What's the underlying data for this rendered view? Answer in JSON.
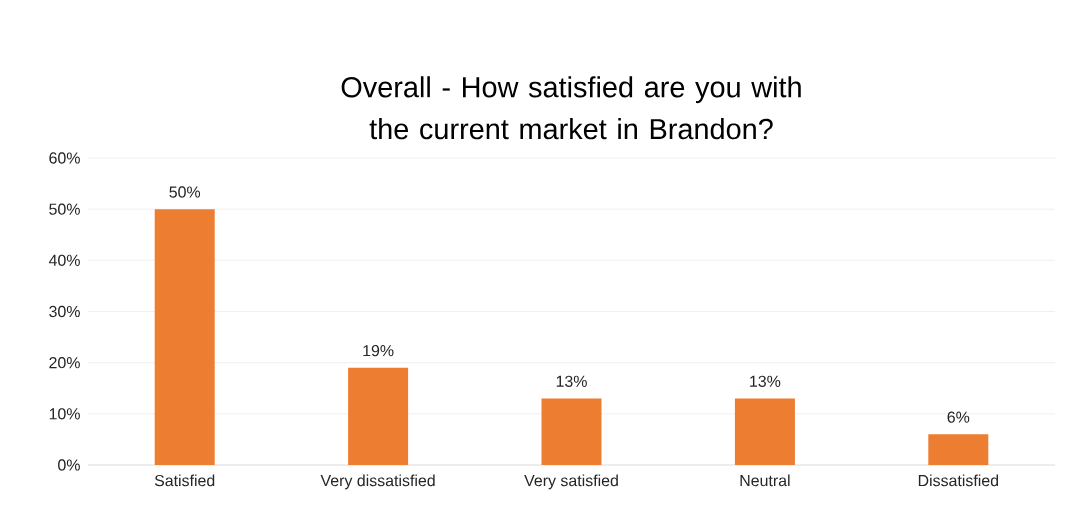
{
  "chart_data": {
    "type": "bar",
    "title": "Overall - How satisfied are you with the current market in Brandon?",
    "categories": [
      "Satisfied",
      "Very dissatisfied",
      "Very satisfied",
      "Neutral",
      "Dissatisfied"
    ],
    "values": [
      50,
      19,
      13,
      13,
      6
    ],
    "value_labels": [
      "50%",
      "19%",
      "13%",
      "13%",
      "6%"
    ],
    "color": "#ed7d31",
    "ylim": [
      0,
      60
    ],
    "yticks": [
      {
        "value": 0,
        "label": "0%"
      },
      {
        "value": 10,
        "label": "10%"
      },
      {
        "value": 20,
        "label": "20%"
      },
      {
        "value": 30,
        "label": "30%"
      },
      {
        "value": 40,
        "label": "40%"
      },
      {
        "value": 50,
        "label": "50%"
      },
      {
        "value": 60,
        "label": "60%"
      }
    ],
    "grid": "y"
  }
}
